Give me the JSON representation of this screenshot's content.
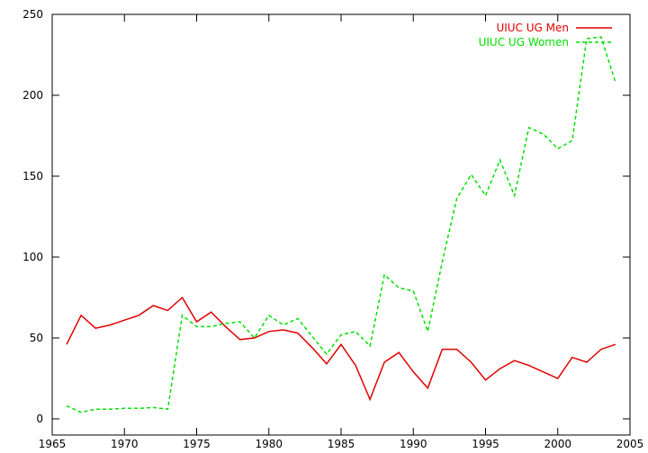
{
  "chart_data": {
    "type": "line",
    "title": "",
    "xlabel": "",
    "ylabel": "",
    "xlim": [
      1965,
      2005
    ],
    "ylim": [
      -10,
      250
    ],
    "xticks": [
      1965,
      1970,
      1975,
      1980,
      1985,
      1990,
      1995,
      2000,
      2005
    ],
    "yticks": [
      0,
      50,
      100,
      150,
      200,
      250
    ],
    "grid": false,
    "legend_position": "top-right",
    "series": [
      {
        "name": "UIUC UG Men",
        "color": "#e00000",
        "dash": "solid",
        "x": [
          1966,
          1967,
          1968,
          1969,
          1970,
          1971,
          1972,
          1973,
          1974,
          1975,
          1976,
          1977,
          1978,
          1979,
          1980,
          1981,
          1982,
          1983,
          1984,
          1985,
          1986,
          1987,
          1988,
          1989,
          1990,
          1991,
          1992,
          1993,
          1994,
          1995,
          1996,
          1997,
          1998,
          1999,
          2000,
          2001,
          2002,
          2003,
          2004
        ],
        "y": [
          46,
          64,
          56,
          58,
          61,
          64,
          70,
          67,
          75,
          60,
          66,
          57,
          49,
          50,
          54,
          55,
          53,
          44,
          34,
          46,
          33,
          12,
          35,
          41,
          29,
          19,
          43,
          43,
          35,
          24,
          31,
          36,
          33,
          29,
          25,
          38,
          35,
          43,
          46
        ]
      },
      {
        "name": "UIUC UG Women",
        "color": "#00e000",
        "dash": "dashed",
        "x": [
          1966,
          1967,
          1968,
          1969,
          1970,
          1971,
          1972,
          1973,
          1974,
          1975,
          1976,
          1977,
          1978,
          1979,
          1980,
          1981,
          1982,
          1983,
          1984,
          1985,
          1986,
          1987,
          1988,
          1989,
          1990,
          1991,
          1992,
          1993,
          1994,
          1995,
          1996,
          1997,
          1998,
          1999,
          2000,
          2001,
          2002,
          2003,
          2004
        ],
        "y": [
          8,
          4,
          6,
          6,
          6.5,
          6.5,
          7,
          6,
          64,
          57,
          57,
          59,
          60,
          50,
          64,
          58,
          62,
          51,
          40,
          52,
          54,
          45,
          89,
          81,
          79,
          54,
          97,
          136,
          151,
          138,
          160,
          138,
          180,
          176,
          167,
          172,
          235,
          236,
          208
        ]
      }
    ]
  }
}
